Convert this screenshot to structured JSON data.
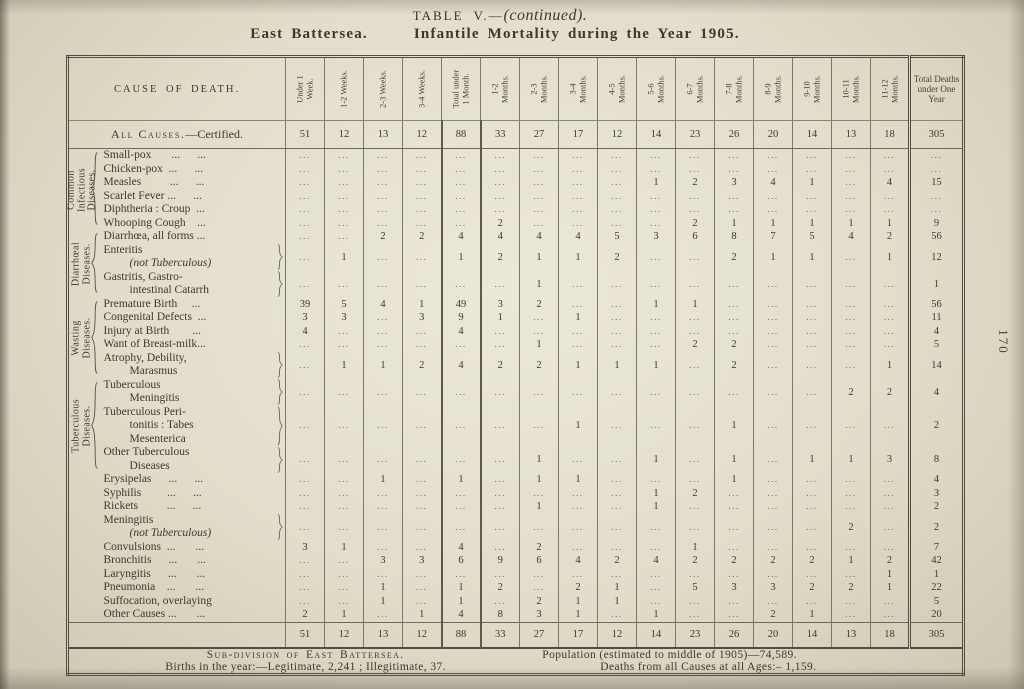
{
  "page": {
    "title_main": "TABLE V.—",
    "title_note": "(continued).",
    "subtitle_left": "East Battersea.",
    "subtitle_right": "Infantile Mortality during the Year 1905.",
    "page_number": "170"
  },
  "table": {
    "cause_header": "Cause of Death.",
    "columns": [
      "Under 1 Week.",
      "1-2 Weeks.",
      "2-3 Weeks.",
      "3-4 Weeks.",
      "Total under 1 Month.",
      "1-2 Months.",
      "2-3 Months.",
      "3-4 Months.",
      "4-5 Months.",
      "5-6 Months.",
      "6-7 Months.",
      "7-8 Months.",
      "8-9 Months.",
      "9-10 Months.",
      "10-11 Months.",
      "11-12 Months."
    ],
    "total_column": "Total Deaths under One Year",
    "all_causes": {
      "label_smallcaps": "All Causes.",
      "label_rest": "—Certified.",
      "values": [
        51,
        12,
        13,
        12,
        88,
        33,
        27,
        17,
        12,
        14,
        23,
        26,
        20,
        14,
        13,
        18,
        305
      ]
    },
    "groups": {
      "common": "Common Infectious Diseases.",
      "diarrhoeal": "Diarrhœal Diseases.",
      "wasting": "Wasting Diseases.",
      "tuberculous": "Tuberculous Diseases."
    },
    "rows": [
      {
        "group": "common",
        "lines": [
          "Small-pox       ...      ..."
        ],
        "values": [
          "...",
          "...",
          "...",
          "...",
          "...",
          "...",
          "...",
          "...",
          "...",
          "...",
          "...",
          "...",
          "...",
          "...",
          "...",
          "...",
          "..."
        ]
      },
      {
        "group": "common",
        "lines": [
          "Chicken-pox  ...      ..."
        ],
        "values": [
          "...",
          "...",
          "...",
          "...",
          "...",
          "...",
          "...",
          "...",
          "...",
          "...",
          "...",
          "...",
          "...",
          "...",
          "...",
          "...",
          "..."
        ]
      },
      {
        "group": "common",
        "lines": [
          "Measles          ...      ..."
        ],
        "values": [
          "...",
          "...",
          "...",
          "...",
          "...",
          "...",
          "...",
          "...",
          "...",
          1,
          2,
          3,
          4,
          1,
          "...",
          4,
          15
        ]
      },
      {
        "group": "common",
        "lines": [
          "Scarlet Fever ...      ..."
        ],
        "values": [
          "...",
          "...",
          "...",
          "...",
          "...",
          "...",
          "...",
          "...",
          "...",
          "...",
          "...",
          "...",
          "...",
          "...",
          "...",
          "...",
          "..."
        ]
      },
      {
        "group": "common",
        "lines": [
          "Diphtheria : Croup  ..."
        ],
        "values": [
          "...",
          "...",
          "...",
          "...",
          "...",
          "...",
          "...",
          "...",
          "...",
          "...",
          "...",
          "...",
          "...",
          "...",
          "...",
          "...",
          "..."
        ]
      },
      {
        "group": "common",
        "lines": [
          "Whooping Cough    ..."
        ],
        "values": [
          "...",
          "...",
          "...",
          "...",
          "...",
          2,
          "...",
          "...",
          "...",
          "...",
          2,
          1,
          1,
          1,
          1,
          1,
          9
        ]
      },
      {
        "group": "diarrhoeal",
        "lines": [
          "Diarrhœa, all forms ..."
        ],
        "values": [
          "...",
          "...",
          2,
          2,
          4,
          4,
          4,
          4,
          5,
          3,
          6,
          8,
          7,
          5,
          4,
          2,
          56
        ]
      },
      {
        "group": "diarrhoeal",
        "lines": [
          "Enteritis",
          "(not Tuberculous)"
        ],
        "italic": [
          1
        ],
        "brace": true,
        "values": [
          "...",
          1,
          "...",
          "...",
          1,
          2,
          1,
          1,
          2,
          "...",
          "...",
          2,
          1,
          1,
          "...",
          1,
          12
        ]
      },
      {
        "group": "diarrhoeal",
        "lines": [
          "Gastritis, Gastro-",
          "intestinal Catarrh"
        ],
        "brace": true,
        "values": [
          "...",
          "...",
          "...",
          "...",
          "...",
          "...",
          1,
          "...",
          "...",
          "...",
          "...",
          "...",
          "...",
          "...",
          "...",
          "...",
          1
        ]
      },
      {
        "group": "wasting",
        "lines": [
          "Premature Birth     ..."
        ],
        "values": [
          39,
          5,
          4,
          1,
          49,
          3,
          2,
          "...",
          "...",
          1,
          1,
          "...",
          "...",
          "...",
          "...",
          "...",
          56
        ]
      },
      {
        "group": "wasting",
        "lines": [
          "Congenital Defects  ..."
        ],
        "values": [
          3,
          3,
          "...",
          3,
          9,
          1,
          "...",
          1,
          "...",
          "...",
          "...",
          "...",
          "...",
          "...",
          "...",
          "...",
          11
        ]
      },
      {
        "group": "wasting",
        "lines": [
          "Injury at Birth        ..."
        ],
        "values": [
          4,
          "...",
          "...",
          "...",
          4,
          "...",
          "...",
          "...",
          "...",
          "...",
          "...",
          "...",
          "...",
          "...",
          "...",
          "...",
          4
        ]
      },
      {
        "group": "wasting",
        "lines": [
          "Want of Breast-milk..."
        ],
        "values": [
          "...",
          "...",
          "...",
          "...",
          "...",
          "...",
          1,
          "...",
          "...",
          "...",
          2,
          2,
          "...",
          "...",
          "...",
          "...",
          5
        ]
      },
      {
        "group": "wasting",
        "lines": [
          "Atrophy, Debility,",
          "Marasmus"
        ],
        "brace": true,
        "values": [
          "...",
          1,
          1,
          2,
          4,
          2,
          2,
          1,
          1,
          1,
          "...",
          2,
          "...",
          "...",
          "...",
          1,
          14
        ]
      },
      {
        "group": "tuberculous",
        "lines": [
          "Tuberculous",
          "Meningitis"
        ],
        "brace": true,
        "values": [
          "...",
          "...",
          "...",
          "...",
          "...",
          "...",
          "...",
          "...",
          "...",
          "...",
          "...",
          "...",
          "...",
          "...",
          2,
          2,
          4
        ]
      },
      {
        "group": "tuberculous",
        "lines": [
          "Tuberculous Peri-",
          "tonitis : Tabes",
          "Mesenterica"
        ],
        "brace": true,
        "values": [
          "...",
          "...",
          "...",
          "...",
          "...",
          "...",
          "...",
          1,
          "...",
          "...",
          "...",
          1,
          "...",
          "...",
          "...",
          "...",
          2
        ]
      },
      {
        "group": "tuberculous",
        "lines": [
          "Other Tuberculous",
          "Diseases"
        ],
        "brace": true,
        "values": [
          "...",
          "...",
          "...",
          "...",
          "...",
          "...",
          1,
          "...",
          "...",
          1,
          "...",
          1,
          "...",
          1,
          1,
          3,
          8
        ]
      },
      {
        "group": null,
        "lines": [
          "Erysipelas      ...      ..."
        ],
        "values": [
          "...",
          "...",
          1,
          "...",
          1,
          "...",
          1,
          1,
          "...",
          "...",
          "...",
          1,
          "...",
          "...",
          "...",
          "...",
          4
        ]
      },
      {
        "group": null,
        "lines": [
          "Syphilis         ...      ..."
        ],
        "values": [
          "...",
          "...",
          "...",
          "...",
          "...",
          "...",
          "...",
          "...",
          "...",
          1,
          2,
          "...",
          "...",
          "...",
          "...",
          "...",
          3
        ]
      },
      {
        "group": null,
        "lines": [
          "Rickets          ...      ..."
        ],
        "values": [
          "...",
          "...",
          "...",
          "...",
          "...",
          "...",
          1,
          "...",
          "...",
          1,
          "...",
          "...",
          "...",
          "...",
          "...",
          "...",
          2
        ]
      },
      {
        "group": null,
        "lines": [
          "Meningitis",
          "(not Tuberculous)"
        ],
        "italic": [
          1
        ],
        "brace": true,
        "values": [
          "...",
          "...",
          "...",
          "...",
          "...",
          "...",
          "...",
          "...",
          "...",
          "...",
          "...",
          "...",
          "...",
          "...",
          2,
          "...",
          2
        ]
      },
      {
        "group": null,
        "lines": [
          "Convulsions  ...       ..."
        ],
        "values": [
          3,
          1,
          "...",
          "...",
          4,
          "...",
          2,
          "...",
          "...",
          "...",
          1,
          "...",
          "...",
          "...",
          "...",
          "...",
          7
        ]
      },
      {
        "group": null,
        "lines": [
          "Bronchitis      ...       ..."
        ],
        "values": [
          "...",
          "...",
          3,
          3,
          6,
          9,
          6,
          4,
          2,
          4,
          2,
          2,
          2,
          2,
          1,
          2,
          42
        ]
      },
      {
        "group": null,
        "lines": [
          "Laryngitis      ...       ..."
        ],
        "values": [
          "...",
          "...",
          "...",
          "...",
          "...",
          "...",
          "...",
          "...",
          "...",
          "...",
          "...",
          "...",
          "...",
          "...",
          "...",
          1,
          1
        ]
      },
      {
        "group": null,
        "lines": [
          "Pneumonia    ...       ..."
        ],
        "values": [
          "...",
          "...",
          1,
          "...",
          1,
          2,
          "...",
          2,
          1,
          "...",
          5,
          3,
          3,
          2,
          2,
          1,
          22
        ]
      },
      {
        "group": null,
        "lines": [
          "Suffocation, overlaying"
        ],
        "values": [
          "...",
          "...",
          1,
          "...",
          1,
          "...",
          2,
          1,
          1,
          "...",
          "...",
          "...",
          "...",
          "...",
          "...",
          "...",
          5
        ]
      },
      {
        "group": null,
        "lines": [
          "Other Causes ...       ..."
        ],
        "values": [
          2,
          1,
          "...",
          1,
          4,
          8,
          3,
          1,
          "...",
          1,
          "...",
          "...",
          2,
          1,
          "...",
          "...",
          20
        ]
      }
    ],
    "totals": [
      51,
      12,
      13,
      12,
      88,
      33,
      27,
      17,
      12,
      14,
      23,
      26,
      20,
      14,
      13,
      18,
      305
    ],
    "footer": {
      "left_line1": "Sub-division of East Battersea.",
      "left_line2": "Births in the year:—Legitimate, 2,241 ;  Illegitimate, 37.",
      "right_line1": "Population (estimated to middle of 1905)—74,589.",
      "right_line2": "Deaths from all Causes at all Ages:– 1,159."
    }
  }
}
